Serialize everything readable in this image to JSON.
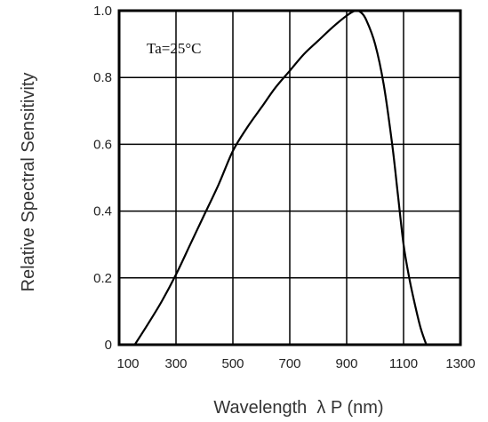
{
  "chart_data": {
    "type": "line",
    "title": "",
    "xlabel": "Wavelength  λ P (nm)",
    "ylabel": "Relative Spectral Sensitivity",
    "xlim": [
      100,
      1300
    ],
    "ylim": [
      0,
      1.0
    ],
    "grid": true,
    "x_ticks": [
      "100",
      "300",
      "500",
      "700",
      "900",
      "1100",
      "1300"
    ],
    "y_ticks": [
      "0",
      "0.2",
      "0.4",
      "0.6",
      "0.8",
      "1.0"
    ],
    "annotation": "Ta=25°C",
    "series": [
      {
        "x": [
          155,
          200,
          250,
          300,
          350,
          400,
          450,
          500,
          550,
          600,
          650,
          700,
          750,
          800,
          850,
          900,
          930,
          950,
          970,
          1000,
          1030,
          1060,
          1080,
          1100,
          1120,
          1140,
          1160,
          1180
        ],
        "y": [
          0.0,
          0.06,
          0.13,
          0.21,
          0.3,
          0.39,
          0.48,
          0.58,
          0.65,
          0.71,
          0.77,
          0.82,
          0.87,
          0.91,
          0.95,
          0.985,
          1.0,
          0.995,
          0.97,
          0.9,
          0.78,
          0.6,
          0.45,
          0.3,
          0.2,
          0.12,
          0.05,
          0.0
        ]
      }
    ],
    "colors": {
      "line": "#000000",
      "grid": "#000000",
      "frame": "#000000"
    }
  }
}
